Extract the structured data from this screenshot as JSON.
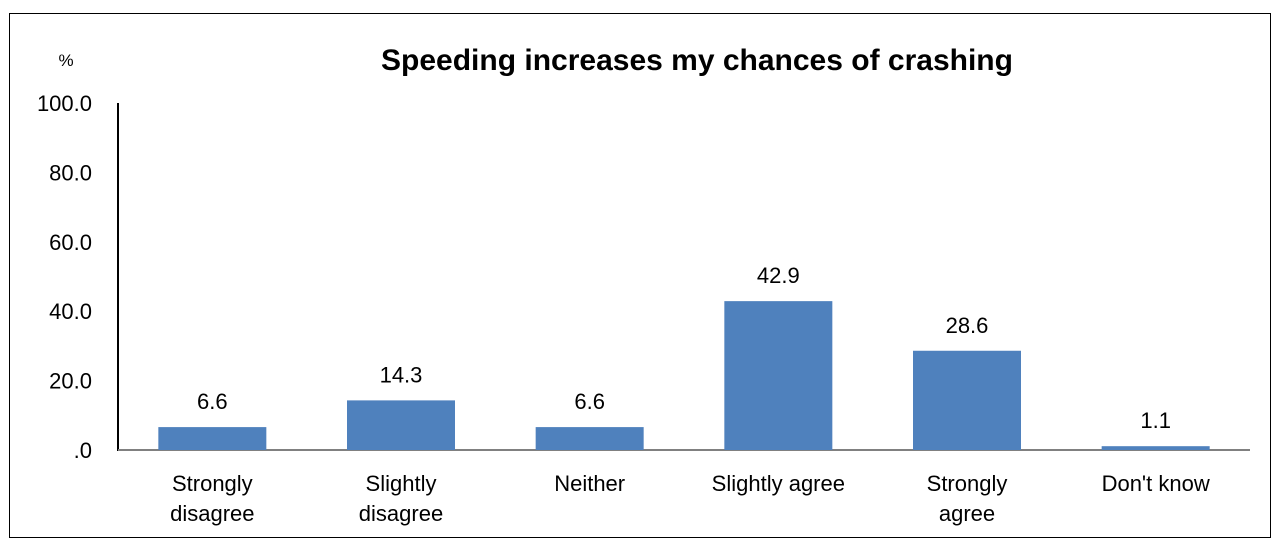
{
  "chart_data": {
    "type": "bar",
    "title": "Speeding increases my chances of crashing",
    "ylabel": "%",
    "xlabel": "",
    "categories": [
      [
        "Strongly",
        "disagree"
      ],
      [
        "Slightly",
        "disagree"
      ],
      [
        "Neither"
      ],
      [
        "Slightly agree"
      ],
      [
        "Strongly",
        "agree"
      ],
      [
        "Don't know"
      ]
    ],
    "values": [
      6.6,
      14.3,
      6.6,
      42.9,
      28.6,
      1.1
    ],
    "data_labels": [
      "6.6",
      "14.3",
      "6.6",
      "42.9",
      "28.6",
      "1.1"
    ],
    "yticks": [
      ".0",
      "20.0",
      "40.0",
      "60.0",
      "80.0",
      "100.0"
    ],
    "ylim": [
      0,
      100
    ],
    "grid": false,
    "bar_color": "#4f81bd",
    "axis_color": "#808080"
  }
}
